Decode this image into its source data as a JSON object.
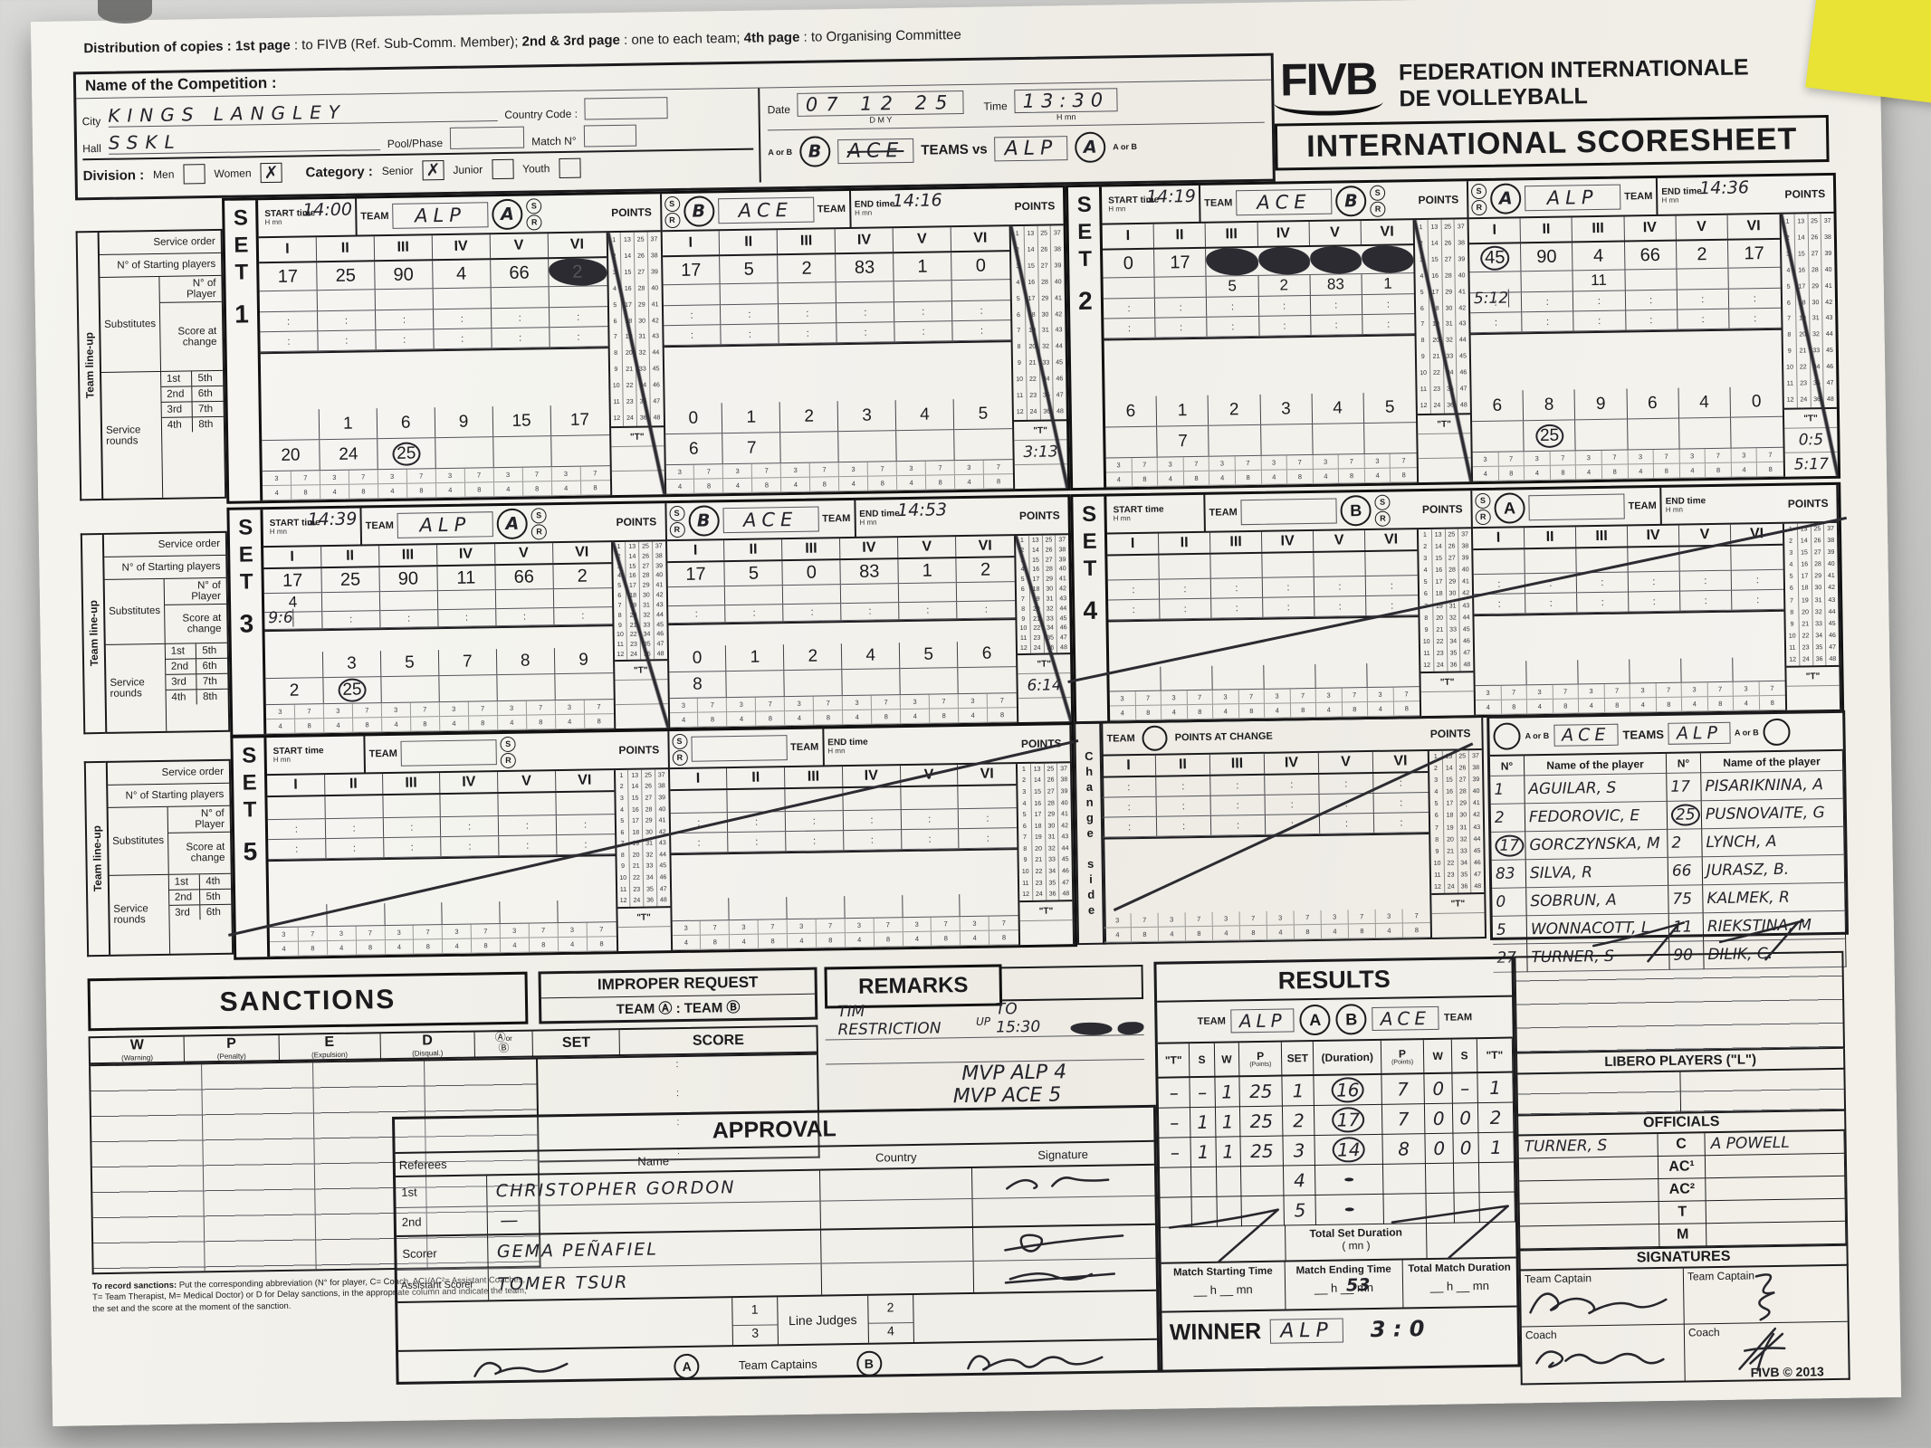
{
  "distribution": {
    "p1": "Distribution of copies : ",
    "p2": "1st page",
    "p3": " : to FIVB (Ref. Sub-Comm. Member); ",
    "p4": "2nd & 3rd page",
    "p5": " : one to each team; ",
    "p6": "4th page",
    "p7": " : to Organising Committee"
  },
  "competition": {
    "name_label": "Name of the Competition :",
    "city_label": "City",
    "city_value": "KINGS LANGLEY",
    "hall_label": "Hall",
    "hall_value": "SSKL",
    "country_label": "Country Code :",
    "pool_label": "Pool/Phase",
    "match_label": "Match N°",
    "date_label": "Date",
    "date_value": "07 12 25",
    "dmy": "D        M        Y",
    "time_label": "Time",
    "time_value": "13:30",
    "hmn": "H      mn",
    "division_label": "Division :",
    "men": "Men",
    "women": "Women",
    "women_check": "✗",
    "category_label": "Category :",
    "senior": "Senior",
    "senior_check": "✗",
    "junior": "Junior",
    "youth": "Youth",
    "aorb": "A or B",
    "team_left_circle": "B",
    "team_left": "ACE",
    "teams_vs": "TEAMS vs",
    "team_right": "ALP",
    "team_right_circle": "A"
  },
  "fivb": {
    "logo": "FIVB",
    "org1": "FEDERATION INTERNATIONALE",
    "org2": "DE VOLLEYBALL",
    "title": "INTERNATIONAL SCORESHEET"
  },
  "shared": {
    "set_word": "SET",
    "start_label": "START time",
    "end_label": "END time",
    "team_label": "TEAM",
    "points_label": "POINTS",
    "hmn": "H     mn",
    "s": "S",
    "r": "R",
    "t_label": "\"T\"",
    "romans": [
      "I",
      "II",
      "III",
      "IV",
      "V",
      "VI"
    ],
    "dots": [
      ":",
      ":",
      ":",
      ":",
      ":",
      ":"
    ],
    "pp37": [
      "3",
      "7",
      "3",
      "7",
      "3",
      "7",
      "3",
      "7",
      "3",
      "7",
      "3",
      "7"
    ],
    "pp48": [
      "4",
      "8",
      "4",
      "8",
      "4",
      "8",
      "4",
      "8",
      "4",
      "8",
      "4",
      "8"
    ],
    "tally": [
      [
        "1",
        "2",
        "3",
        "4",
        "5",
        "6",
        "7",
        "8",
        "9",
        "10",
        "11",
        "12"
      ],
      [
        "13",
        "14",
        "15",
        "16",
        "17",
        "18",
        "19",
        "20",
        "21",
        "22",
        "23",
        "24"
      ],
      [
        "25",
        "26",
        "27",
        "28",
        "29",
        "30",
        "31",
        "32",
        "33",
        "34",
        "35",
        "36"
      ],
      [
        "37",
        "38",
        "39",
        "40",
        "41",
        "42",
        "43",
        "44",
        "45",
        "46",
        "47",
        "48"
      ]
    ]
  },
  "lineup": {
    "team_lineup": "Team line-up",
    "service_order": "Service order",
    "starting": "N° of Starting players",
    "substitutes": "Substitutes",
    "n_of_player": "N° of Player",
    "score_at_change": "Score at change",
    "service_rounds": "Service rounds",
    "r14": [
      [
        "1st",
        "5th"
      ],
      [
        "2nd",
        "6th"
      ],
      [
        "3rd",
        "7th"
      ],
      [
        "4th",
        "8th"
      ]
    ],
    "r5": [
      [
        "1st",
        "4th"
      ],
      [
        "2nd",
        "5th"
      ],
      [
        "3rd",
        "6th"
      ]
    ]
  },
  "sets": [
    {
      "num": "1",
      "left": {
        "start": "14:00",
        "team": "ALP",
        "circle": "A",
        "starting": [
          "17",
          "25",
          "90",
          "4",
          "66",
          "#2"
        ],
        "subs": [
          "",
          "",
          "",
          "",
          "",
          ""
        ],
        "change": "",
        "rtop": [
          "",
          "1",
          "6",
          "9",
          "15",
          "17"
        ],
        "rmid": [
          "20",
          "24",
          "(25)",
          "",
          "",
          ""
        ],
        "t1": "",
        "t2": ""
      },
      "right": {
        "circle": "B",
        "team": "ACE",
        "end": "14:16",
        "starting": [
          "17",
          "5",
          "2",
          "83",
          "1",
          "0"
        ],
        "subs": [
          "",
          "",
          "",
          "",
          "",
          ""
        ],
        "change": "",
        "rtop": [
          "0",
          "1",
          "2",
          "3",
          "4",
          "5"
        ],
        "rmid": [
          "6",
          "7",
          "",
          "",
          "",
          ""
        ],
        "t1": "3:13",
        "t2": ""
      }
    },
    {
      "num": "2",
      "left": {
        "start": "14:19",
        "team": "ACE",
        "circle": "B",
        "starting": [
          "0",
          "17",
          "#",
          "#",
          "#",
          "#"
        ],
        "subs": [
          "",
          "",
          "5",
          "2",
          "83",
          "1"
        ],
        "change": "",
        "rtop": [
          "6",
          "1",
          "2",
          "3",
          "4",
          "5"
        ],
        "rmid": [
          "",
          "7",
          "",
          "",
          "",
          ""
        ],
        "t1": "",
        "t2": ""
      },
      "right": {
        "circle": "A",
        "team": "ALP",
        "end": "14:36",
        "starting": [
          "(45)",
          "90",
          "4",
          "66",
          "2",
          "17"
        ],
        "subs": [
          "",
          "",
          "11",
          "",
          "",
          ""
        ],
        "change": "5:12",
        "rtop": [
          "6",
          "8",
          "9",
          "6",
          "4",
          "0"
        ],
        "rmid": [
          "",
          "(25)",
          "",
          "",
          "",
          ""
        ],
        "t1": "0:5",
        "t2": "5:17"
      }
    },
    {
      "num": "3",
      "left": {
        "start": "14:39",
        "team": "ALP",
        "circle": "A",
        "starting": [
          "17",
          "25",
          "90",
          "11",
          "66",
          "2"
        ],
        "subs": [
          "4",
          "",
          "",
          "",
          "",
          ""
        ],
        "change": "9:6",
        "rtop": [
          "",
          "3",
          "5",
          "7",
          "8",
          "9"
        ],
        "rmid": [
          "2",
          "(25)",
          "",
          "",
          "",
          ""
        ],
        "t1": "",
        "t2": ""
      },
      "right": {
        "circle": "B",
        "team": "ACE",
        "end": "14:53",
        "starting": [
          "17",
          "5",
          "0",
          "83",
          "1",
          "2"
        ],
        "subs": [
          "",
          "",
          "",
          "",
          "",
          ""
        ],
        "change": "",
        "rtop": [
          "0",
          "1",
          "2",
          "4",
          "5",
          "6"
        ],
        "rmid": [
          "8",
          "",
          "",
          "",
          "",
          ""
        ],
        "t1": "6:14",
        "t2": ""
      }
    },
    {
      "num": "4",
      "left": {
        "start": "",
        "team": "",
        "circle": "B",
        "starting": [
          "",
          "",
          "",
          "",
          "",
          ""
        ],
        "subs": [
          "",
          "",
          "",
          "",
          "",
          ""
        ],
        "change": "",
        "rtop": [
          "",
          "",
          "",
          "",
          "",
          ""
        ],
        "rmid": [
          "",
          "",
          "",
          "",
          "",
          ""
        ],
        "t1": "",
        "t2": ""
      },
      "right": {
        "circle": "A",
        "team": "",
        "end": "",
        "starting": [
          "",
          "",
          "",
          "",
          "",
          ""
        ],
        "subs": [
          "",
          "",
          "",
          "",
          "",
          ""
        ],
        "change": "",
        "rtop": [
          "",
          "",
          "",
          "",
          "",
          ""
        ],
        "rmid": [
          "",
          "",
          "",
          "",
          "",
          ""
        ],
        "t1": "",
        "t2": ""
      }
    },
    {
      "num": "5",
      "left": {
        "start": "",
        "team": "",
        "circle": "S",
        "starting": [
          "",
          "",
          "",
          "",
          "",
          ""
        ],
        "subs": [
          "",
          "",
          "",
          "",
          "",
          ""
        ],
        "change": "",
        "rtop": [
          "",
          "",
          "",
          "",
          "",
          ""
        ],
        "rmid": [
          "",
          "",
          "",
          "",
          "",
          ""
        ],
        "t1": "",
        "t2": ""
      },
      "right": {
        "circle": "A",
        "team": "",
        "end": "",
        "starting": [
          "",
          "",
          "",
          "",
          "",
          ""
        ],
        "subs": [
          "",
          "",
          "",
          "",
          "",
          ""
        ],
        "change": "",
        "rtop": [
          "",
          "",
          "",
          "",
          "",
          ""
        ],
        "rmid": [
          "",
          "",
          "",
          "",
          "",
          ""
        ],
        "t1": "",
        "t2": ""
      }
    }
  ],
  "change_block": {
    "side_word": "Change side",
    "team": "TEAM",
    "pac": "POINTS AT CHANGE",
    "points": "POINTS"
  },
  "roster": {
    "left_ab": "A or B",
    "left_team": "ACE",
    "teams": "TEAMS",
    "right_team": "ALP",
    "right_ab": "A or B",
    "no": "N°",
    "name": "Name of the player",
    "rows": [
      [
        "1",
        "AGUILAR, S",
        "17",
        "PISARIKNINA, A"
      ],
      [
        "2",
        "FEDOROVIC, E",
        "(25)",
        "PUSNOVAITE, G"
      ],
      [
        "(17)",
        "GORCZYNSKA, M",
        "2",
        "LYNCH, A"
      ],
      [
        "83",
        "SILVA, R",
        "66",
        "JURASZ, B."
      ],
      [
        "0",
        "SOBRUN, A",
        "75",
        "KALMEK, R"
      ],
      [
        "5",
        "WONNACOTT, L",
        "11",
        "RIEKSTINA, M"
      ],
      [
        "27",
        "TURNER, S",
        "90",
        "DILIK, C."
      ]
    ]
  },
  "sanctions": {
    "title": "SANCTIONS",
    "w": "W",
    "w2": "(Warning)",
    "p": "P",
    "p2": "(Penalty)",
    "e": "E",
    "e2": "(Expulsion)",
    "d": "D",
    "d2": "(Disqual.)",
    "ab1": "Ⓐ",
    "ab_or": "or",
    "ab2": "Ⓑ",
    "set": "SET",
    "score": "SCORE",
    "score_dots": [
      ":",
      ":",
      ":",
      ":",
      ":",
      ":",
      ":",
      ":",
      ":",
      ":"
    ],
    "note_head": "To record sanctions:",
    "note": " Put the corresponding abbreviation (N° for player, C= Coach, AC¹/AC²= Assistant Coaches, T= Team Therapist, M= Medical Doctor) or D for Delay sanctions, in the appropriate column and indicate the team, the set and the score at the moment of the sanction."
  },
  "improper": {
    "title": "IMPROPER REQUEST",
    "teams": "TEAM Ⓐ : TEAM Ⓑ"
  },
  "remarks": {
    "title": "REMARKS",
    "line1": "TIM RESTRICTION",
    "sup": "UP",
    "line1b": "TO 15:30",
    "mvp1": "MVP ALP 4",
    "mvp2": "MVP ACE 5"
  },
  "approval": {
    "title": "APPROVAL",
    "referees": "Referees",
    "name": "Name",
    "country": "Country",
    "signature": "Signature",
    "rows": [
      [
        "1st",
        "CHRISTOPHER GORDON"
      ],
      [
        "2nd",
        "—"
      ],
      [
        "Scorer",
        "GEMA PEÑAFIEL"
      ],
      [
        "Assistant Scorer",
        "TOMER TSUR"
      ]
    ],
    "lj1": "1",
    "lj2": "2",
    "lj3": "3",
    "lj4": "4",
    "line_judges": "Line Judges",
    "captains": "Team Captains",
    "a": "A",
    "b": "B"
  },
  "results": {
    "title": "RESULTS",
    "team": "TEAM",
    "team_a": "ALP",
    "a": "A",
    "b": "B",
    "team_b": "ACE",
    "h": [
      "\"T\"",
      "S",
      "W",
      "P",
      "SET",
      "(Duration)",
      "P",
      "W",
      "S",
      "\"T\""
    ],
    "points_sub": "(Points)",
    "rows": [
      [
        "–",
        "–",
        "1",
        "25",
        "1",
        "(  16  )",
        "7",
        "0",
        "–",
        "1"
      ],
      [
        "–",
        "1",
        "1",
        "25",
        "2",
        "(  17  )",
        "7",
        "0",
        "0",
        "2"
      ],
      [
        "–",
        "1",
        "1",
        "25",
        "3",
        "(  14  )",
        "8",
        "0",
        "0",
        "1"
      ],
      [
        "",
        "",
        "",
        "",
        "4",
        "(       )",
        "",
        "",
        "",
        ""
      ],
      [
        "",
        "",
        "",
        "",
        "5",
        "(       )",
        "",
        "",
        "",
        ""
      ]
    ],
    "tsd1": "Total Set Duration",
    "tsd2": "(          mn )",
    "mst": "Match Starting Time",
    "met": "Match Ending Time",
    "tmd": "Total Match Duration",
    "hmn_blank": "__ h  __ mn",
    "met_hw": "53",
    "winner": "WINNER",
    "winner_team": "ALP",
    "winner_score": "3 : 0"
  },
  "libero": {
    "title": "LIBERO PLAYERS (\"L\")"
  },
  "officials": {
    "title": "OFFICIALS",
    "rows": [
      [
        "TURNER, S",
        "C",
        "A POWELL"
      ],
      [
        "",
        "AC¹",
        ""
      ],
      [
        "",
        "AC²",
        ""
      ],
      [
        "",
        "T",
        ""
      ],
      [
        "",
        "M",
        ""
      ]
    ]
  },
  "signatures": {
    "title": "SIGNATURES",
    "tc": "Team Captain",
    "coach": "Coach"
  },
  "footer": "FIVB © 2013"
}
